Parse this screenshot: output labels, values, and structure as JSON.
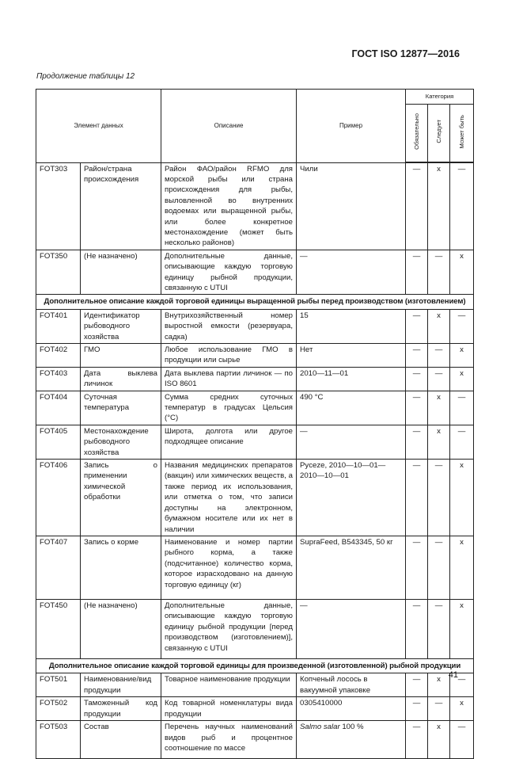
{
  "header": {
    "doc_code": "ГОСТ ISO 12877—2016"
  },
  "caption": "Продолжение таблицы 12",
  "table": {
    "columns": {
      "element": "Элемент данных",
      "description": "Описание",
      "example": "Пример",
      "category": "Категория",
      "cat_required": "Обязательно",
      "cat_should": "Следует",
      "cat_may": "Может быть"
    },
    "rows": [
      {
        "code": "FOT303",
        "name": "Район/страна происхождения",
        "desc": "Район ФАО/район RFMO для морской рыбы или страна происхождения для рыбы, выловленной во внутренних водоемах или выращенной рыбы, или более конкретное местонахождение (может быть несколько районов)",
        "example": "Чили",
        "req": "—",
        "should": "x",
        "may": "—"
      },
      {
        "code": "FOT350",
        "name": "(Не назначено)",
        "desc": "Дополнительные данные, описывающие каждую торговую единицу рыбной продукции, связанную с UTUI",
        "example": "—",
        "req": "—",
        "should": "—",
        "may": "x"
      }
    ],
    "section1": "Дополнительное описание каждой торговой единицы выращенной рыбы перед производством (изготовлением)",
    "rows2": [
      {
        "code": "FOT401",
        "name": "Идентификатор рыбоводного хозяйства",
        "desc": "Внутрихозяйственный номер выростной емкости (резервуара, садка)",
        "example": "15",
        "req": "—",
        "should": "x",
        "may": "—"
      },
      {
        "code": "FOT402",
        "name": "ГМО",
        "desc": "Любое использование ГМО в продукции или сырье",
        "example": "Нет",
        "req": "—",
        "should": "—",
        "may": "x"
      },
      {
        "code": "FOT403",
        "name": "Дата выклева личинок",
        "desc": "Дата выклева партии личинок — по ISO 8601",
        "example": "2010—11—01",
        "req": "—",
        "should": "—",
        "may": "x"
      },
      {
        "code": "FOT404",
        "name": "Суточная температура",
        "desc": "Сумма средних суточных температур в градусах Цельсия (°C)",
        "example": "490 °C",
        "req": "—",
        "should": "x",
        "may": "—"
      },
      {
        "code": "FOT405",
        "name": "Местонахождение рыбоводного хозяйства",
        "desc": "Широта, долгота или другое подходящее описание",
        "example": "—",
        "req": "—",
        "should": "x",
        "may": "—"
      },
      {
        "code": "FOT406",
        "name": "Запись о применении химической обработки",
        "desc": "Названия медицинских препаратов (вакцин) или химических веществ, а также период их использования, или отметка о том, что записи доступны на электронном, бумажном носителе или их нет в наличии",
        "example": "Pyceze, 2010—10—01—2010—10—01",
        "req": "—",
        "should": "—",
        "may": "x"
      },
      {
        "code": "FOT407",
        "name": "Запись о корме",
        "desc": "Наименование и номер партии рыбного корма, а также (подсчитанное) количество корма, которое израсходовано на данную торговую единицу (кг)",
        "example": "SupraFeed, B543345, 50 кг",
        "req": "—",
        "should": "—",
        "may": "x"
      },
      {
        "code": "FOT450",
        "name": "(Не назначено)",
        "desc": "Дополнительные данные, описывающие каждую торговую единицу рыбной продукции [перед производством (изготовлением)], связанную с UTUI",
        "example": "—",
        "req": "—",
        "should": "—",
        "may": "x"
      }
    ],
    "section2": "Дополнительное описание каждой торговой единицы для произведенной (изготовленной) рыбной продукции",
    "rows3": [
      {
        "code": "FOT501",
        "name": "Наименование/вид продукции",
        "desc": "Товарное наименование продукции",
        "example": "Копченый лосось в вакуумной упаковке",
        "req": "—",
        "should": "x",
        "may": "—"
      },
      {
        "code": "FOT502",
        "name": "Таможенный код продукции",
        "desc": "Код товарной номенклатуры вида продукции",
        "example": "0305410000",
        "req": "—",
        "should": "—",
        "may": "x"
      },
      {
        "code": "FOT503",
        "name": "Состав",
        "desc": "Перечень научных наименований видов рыб и процентное соотношение по массе",
        "example_italic": "Salmo salar",
        "example": " 100 %",
        "req": "—",
        "should": "x",
        "may": "—"
      }
    ]
  },
  "page_number": "41"
}
